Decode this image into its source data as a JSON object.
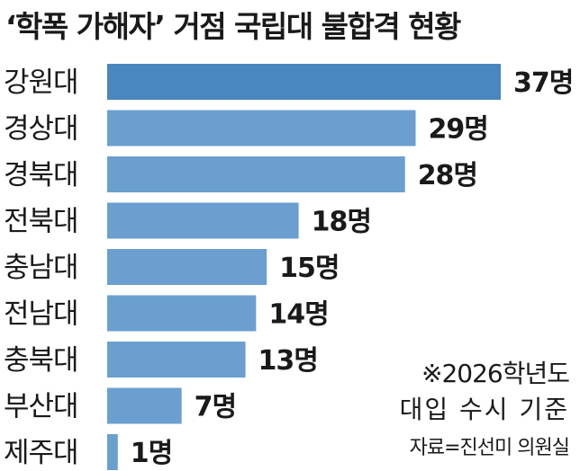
{
  "title": "‘학폭 가해자’ 거점 국립대 불합격 현황",
  "notes": {
    "line1": "※2026학년도",
    "line2": "대입 수시 기준",
    "source": "자료=진선미 의원실"
  },
  "colors": {
    "bar": "#6b9fd0",
    "bar_top": "#4a86bf",
    "text": "#1a1a1a"
  },
  "chart_data": {
    "type": "bar",
    "orientation": "horizontal",
    "categories": [
      "강원대",
      "경상대",
      "경북대",
      "전북대",
      "충남대",
      "전남대",
      "충북대",
      "부산대",
      "제주대"
    ],
    "values": [
      37,
      29,
      28,
      18,
      15,
      14,
      13,
      7,
      1
    ],
    "value_labels": [
      "37명",
      "29명",
      "28명",
      "18명",
      "15명",
      "14명",
      "13명",
      "7명",
      "1명"
    ],
    "title": "‘학폭 가해자’ 거점 국립대 불합격 현황",
    "xlabel": "",
    "ylabel": "",
    "xlim": [
      0,
      37
    ],
    "grid": false,
    "legend": "none"
  }
}
